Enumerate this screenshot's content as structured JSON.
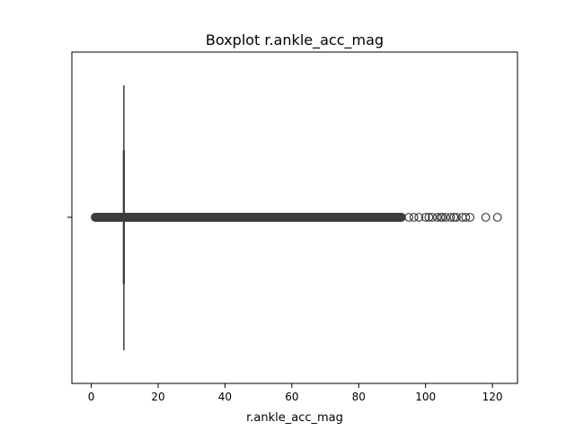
{
  "chart_data": {
    "type": "box",
    "title": "Boxplot r.ankle_acc_mag",
    "xlabel": "r.ankle_acc_mag",
    "ylabel": "",
    "orientation": "horizontal",
    "xlim": [
      -5.8,
      127.5
    ],
    "xticks": [
      0,
      20,
      40,
      60,
      80,
      100,
      120
    ],
    "xtick_labels": [
      "0",
      "20",
      "40",
      "60",
      "80",
      "100",
      "120"
    ],
    "grid": false,
    "box": {
      "q1": 9.6,
      "median": 9.75,
      "q3": 9.9,
      "whisker_low": 9.5,
      "whisker_high": 9.95
    },
    "outliers": {
      "dense_range": [
        0,
        94
      ],
      "sparse": [
        95,
        96.5,
        98,
        100,
        101,
        102,
        103.5,
        104.5,
        105,
        106,
        107.5,
        108.5,
        109.2,
        111,
        112,
        113.3,
        118,
        121.5
      ]
    },
    "colors": {
      "box_line": "#3d3d3d",
      "outlier_edge": "#3d3d3d",
      "axes": "#000000"
    }
  }
}
